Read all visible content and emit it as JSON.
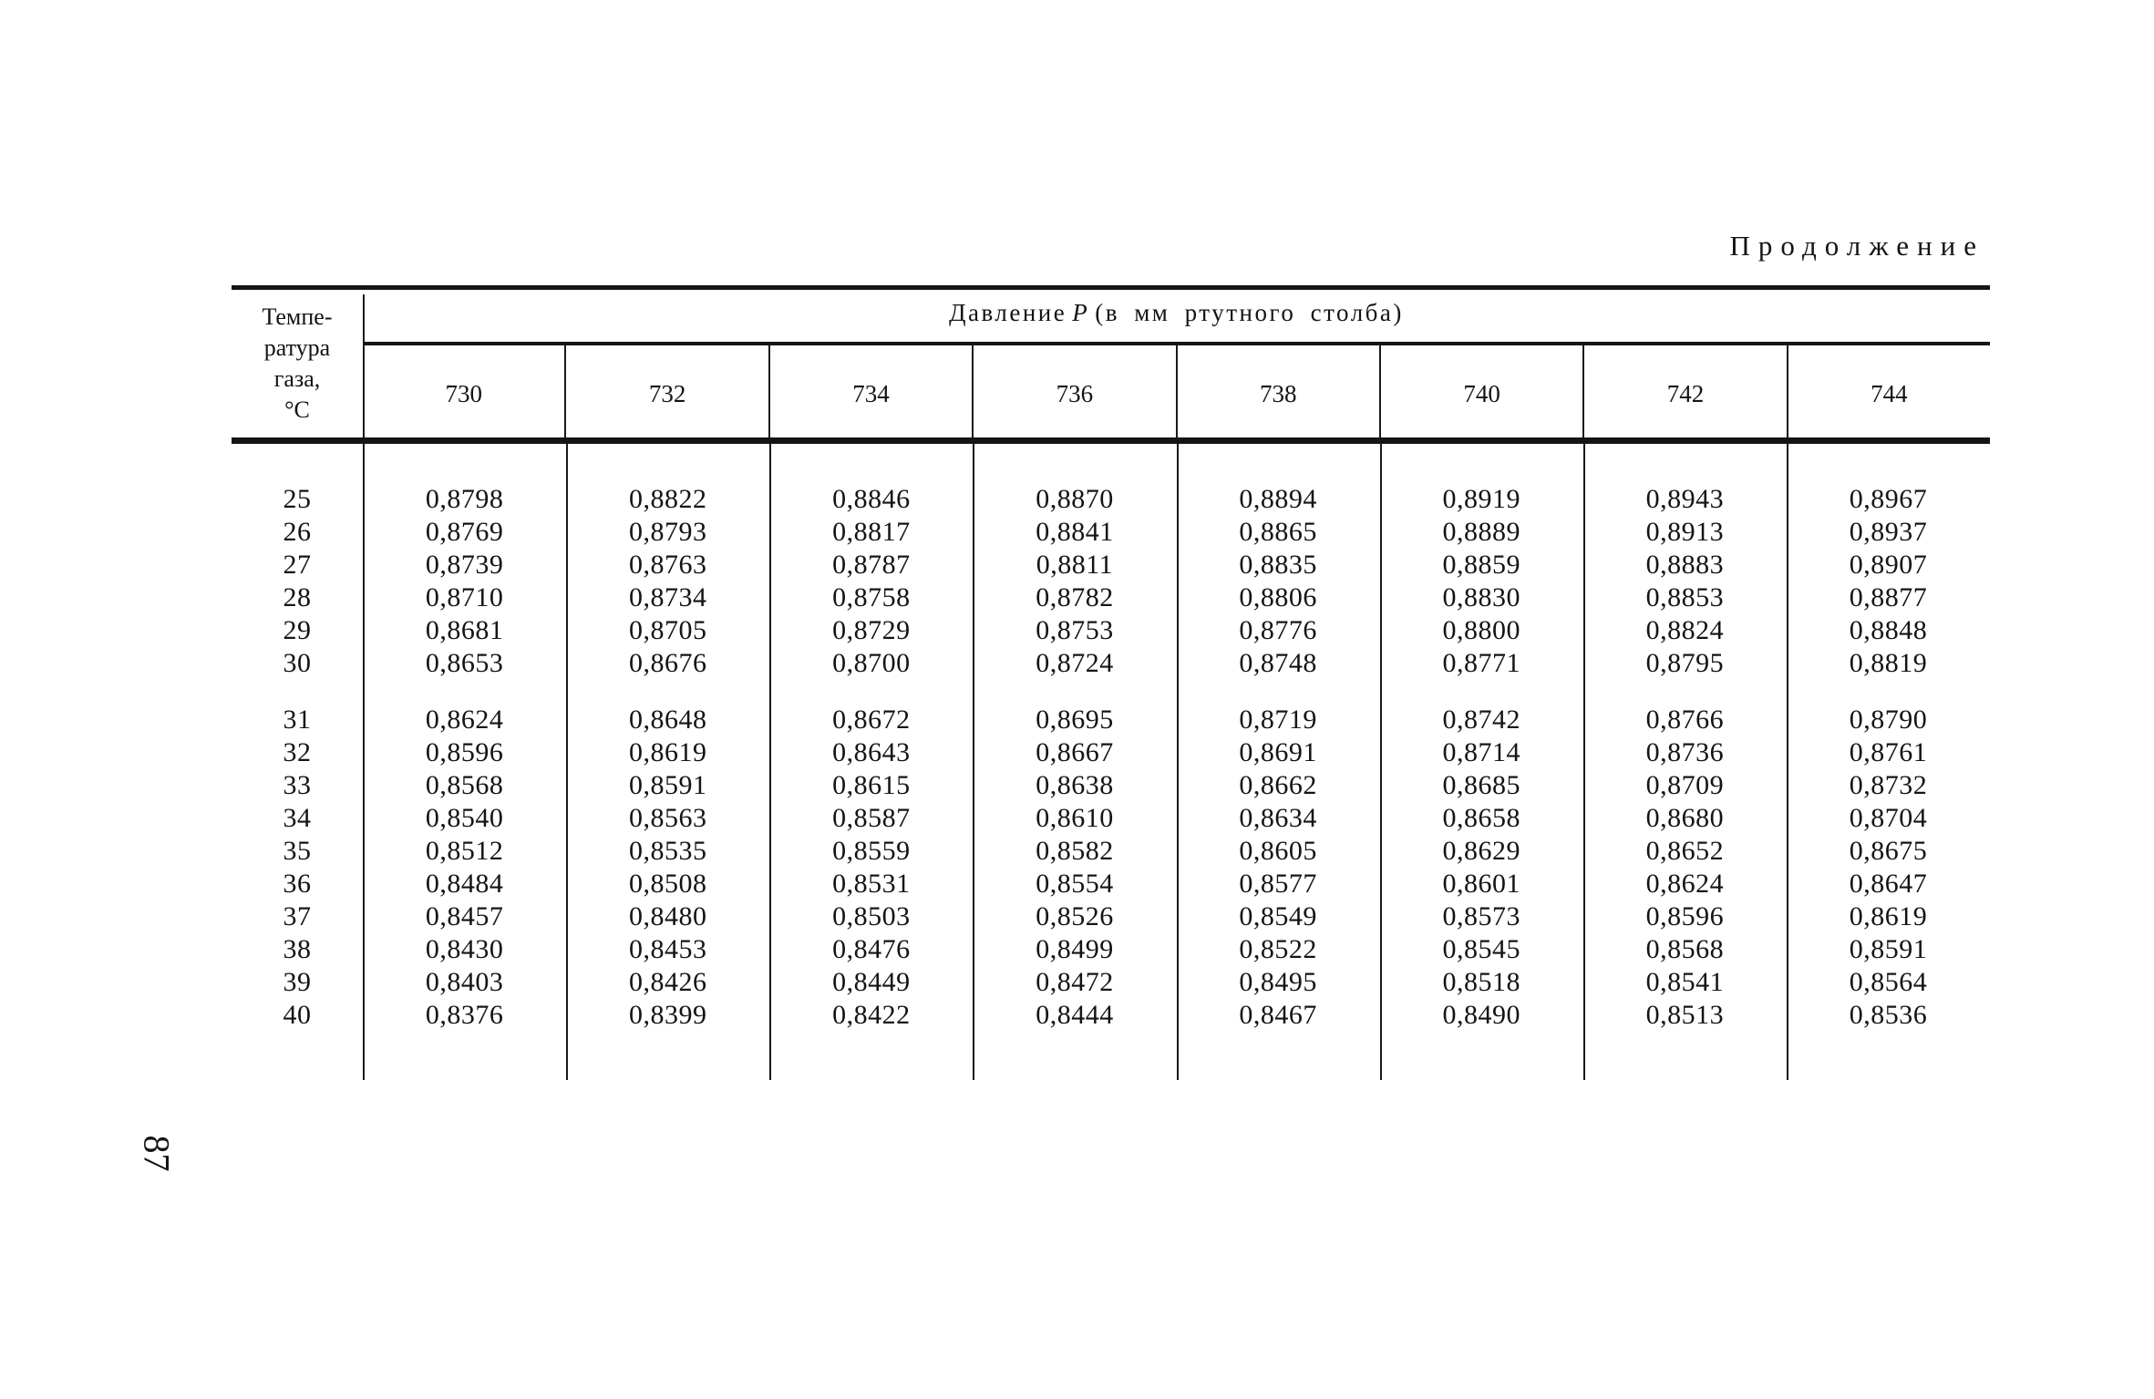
{
  "page": {
    "continuation_label": "Продолжение",
    "page_number": "87"
  },
  "table": {
    "row_header_title": "Темпе-\nратура\nгаза,\n°С",
    "col_group_title": {
      "prefix": "Давление",
      "symbol": "P",
      "suffix": "(в мм ртутного столба)"
    },
    "pressure_columns": [
      "730",
      "732",
      "734",
      "736",
      "738",
      "740",
      "742",
      "744"
    ],
    "rows": [
      {
        "temp": "25",
        "values": [
          "0,8798",
          "0,8822",
          "0,8846",
          "0,8870",
          "0,8894",
          "0,8919",
          "0,8943",
          "0,8967"
        ]
      },
      {
        "temp": "26",
        "values": [
          "0,8769",
          "0,8793",
          "0,8817",
          "0,8841",
          "0,8865",
          "0,8889",
          "0,8913",
          "0,8937"
        ]
      },
      {
        "temp": "27",
        "values": [
          "0,8739",
          "0,8763",
          "0,8787",
          "0,8811",
          "0,8835",
          "0,8859",
          "0,8883",
          "0,8907"
        ]
      },
      {
        "temp": "28",
        "values": [
          "0,8710",
          "0,8734",
          "0,8758",
          "0,8782",
          "0,8806",
          "0,8830",
          "0,8853",
          "0,8877"
        ]
      },
      {
        "temp": "29",
        "values": [
          "0,8681",
          "0,8705",
          "0,8729",
          "0,8753",
          "0,8776",
          "0,8800",
          "0,8824",
          "0,8848"
        ]
      },
      {
        "temp": "30",
        "values": [
          "0,8653",
          "0,8676",
          "0,8700",
          "0,8724",
          "0,8748",
          "0,8771",
          "0,8795",
          "0,8819"
        ]
      },
      {
        "temp": "31",
        "values": [
          "0,8624",
          "0,8648",
          "0,8672",
          "0,8695",
          "0,8719",
          "0,8742",
          "0,8766",
          "0,8790"
        ]
      },
      {
        "temp": "32",
        "values": [
          "0,8596",
          "0,8619",
          "0,8643",
          "0,8667",
          "0,8691",
          "0,8714",
          "0,8736",
          "0,8761"
        ]
      },
      {
        "temp": "33",
        "values": [
          "0,8568",
          "0,8591",
          "0,8615",
          "0,8638",
          "0,8662",
          "0,8685",
          "0,8709",
          "0,8732"
        ]
      },
      {
        "temp": "34",
        "values": [
          "0,8540",
          "0,8563",
          "0,8587",
          "0,8610",
          "0,8634",
          "0,8658",
          "0,8680",
          "0,8704"
        ]
      },
      {
        "temp": "35",
        "values": [
          "0,8512",
          "0,8535",
          "0,8559",
          "0,8582",
          "0,8605",
          "0,8629",
          "0,8652",
          "0,8675"
        ]
      },
      {
        "temp": "36",
        "values": [
          "0,8484",
          "0,8508",
          "0,8531",
          "0,8554",
          "0,8577",
          "0,8601",
          "0,8624",
          "0,8647"
        ]
      },
      {
        "temp": "37",
        "values": [
          "0,8457",
          "0,8480",
          "0,8503",
          "0,8526",
          "0,8549",
          "0,8573",
          "0,8596",
          "0,8619"
        ]
      },
      {
        "temp": "38",
        "values": [
          "0,8430",
          "0,8453",
          "0,8476",
          "0,8499",
          "0,8522",
          "0,8545",
          "0,8568",
          "0,8591"
        ]
      },
      {
        "temp": "39",
        "values": [
          "0,8403",
          "0,8426",
          "0,8449",
          "0,8472",
          "0,8495",
          "0,8518",
          "0,8541",
          "0,8564"
        ]
      },
      {
        "temp": "40",
        "values": [
          "0,8376",
          "0,8399",
          "0,8422",
          "0,8444",
          "0,8467",
          "0,8490",
          "0,8513",
          "0,8536"
        ]
      }
    ]
  }
}
